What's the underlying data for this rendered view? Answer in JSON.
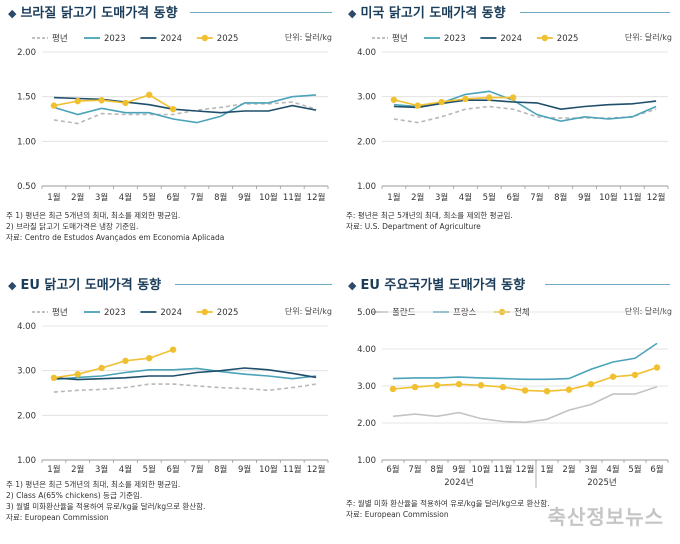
{
  "panels": [
    {
      "id": "brazil",
      "title": "브라질 닭고기 도매가격 동향",
      "unit": "단위: 달러/kg",
      "notes": [
        "주 1) 평년은 최근 5개년의 최대, 최소를 제외한 평균임.",
        "    2) 브라질 닭고기 도매가격은 냉장 기준임.",
        "자료: Centro de Estudos Avançados em Economia Aplicada"
      ]
    },
    {
      "id": "usa",
      "title": "미국 닭고기 도매가격 동향",
      "unit": "단위: 달러/kg",
      "notes": [
        "주: 평년은 최근 5개년의 최대, 최소를 제외한 평균임.",
        "자료: U.S. Department of Agriculture"
      ]
    },
    {
      "id": "eu",
      "title": "EU 닭고기 도매가격 동향",
      "unit": "단위: 달러/kg",
      "notes": [
        "주 1) 평년은 최근 5개년의 최대, 최소를 제외한 평균임.",
        "    2) Class A(65% chickens) 등급 기준임.",
        "    3) 월별 미화환산율을 적용하여 유로/kg을 달러/kg으로 환산함.",
        "자료: European Commission"
      ]
    },
    {
      "id": "eu_country",
      "title": "EU 주요국가별 도매가격 동향",
      "unit": "단위: 달러/kg",
      "notes": [
        "주: 월별 미화 환산율을 적용하여 유로/kg을 달러/kg으로 환산함.",
        "자료: European Commission"
      ]
    }
  ],
  "watermark": "축산정보뉴스",
  "chart_data": [
    {
      "type": "line",
      "title": "브라질 닭고기 도매가격 동향",
      "categories": [
        "1월",
        "2월",
        "3월",
        "4월",
        "5월",
        "6월",
        "7월",
        "8월",
        "9월",
        "10월",
        "11월",
        "12월"
      ],
      "ylim": [
        0.5,
        2.0
      ],
      "yticks": [
        "0.50",
        "1.00",
        "1.50",
        "2.00"
      ],
      "ytick_values": [
        0.5,
        1.0,
        1.5,
        2.0
      ],
      "legend_position": "top-left",
      "series": [
        {
          "name": "평년",
          "color": "#b8b8b8",
          "dashed": true,
          "values": [
            1.24,
            1.2,
            1.31,
            1.3,
            1.3,
            1.3,
            1.35,
            1.38,
            1.42,
            1.42,
            1.44,
            1.36
          ]
        },
        {
          "name": "2023",
          "color": "#4aa3b9",
          "values": [
            1.38,
            1.3,
            1.37,
            1.32,
            1.32,
            1.25,
            1.21,
            1.28,
            1.43,
            1.43,
            1.5,
            1.52
          ]
        },
        {
          "name": "2024",
          "color": "#1f4e6b",
          "values": [
            1.49,
            1.48,
            1.47,
            1.44,
            1.41,
            1.36,
            1.34,
            1.32,
            1.34,
            1.34,
            1.4,
            1.35
          ]
        },
        {
          "name": "2025",
          "color": "#f0c030",
          "marker": true,
          "values": [
            1.4,
            1.45,
            1.46,
            1.43,
            1.52,
            1.36,
            null,
            null,
            null,
            null,
            null,
            null
          ]
        }
      ]
    },
    {
      "type": "line",
      "title": "미국 닭고기 도매가격 동향",
      "categories": [
        "1월",
        "2월",
        "3월",
        "4월",
        "5월",
        "6월",
        "7월",
        "8월",
        "9월",
        "10월",
        "11월",
        "12월"
      ],
      "ylim": [
        1.0,
        4.0
      ],
      "yticks": [
        "1.00",
        "2.00",
        "3.00",
        "4.00"
      ],
      "ytick_values": [
        1.0,
        2.0,
        3.0,
        4.0
      ],
      "legend_position": "top-left",
      "series": [
        {
          "name": "평년",
          "color": "#b8b8b8",
          "dashed": true,
          "values": [
            2.5,
            2.42,
            2.55,
            2.72,
            2.78,
            2.72,
            2.55,
            2.52,
            2.52,
            2.52,
            2.55,
            2.72
          ]
        },
        {
          "name": "2023",
          "color": "#4aa3b9",
          "values": [
            2.82,
            2.78,
            2.86,
            3.05,
            3.12,
            2.92,
            2.6,
            2.45,
            2.55,
            2.5,
            2.55,
            2.78
          ]
        },
        {
          "name": "2024",
          "color": "#1f4e6b",
          "values": [
            2.78,
            2.76,
            2.85,
            2.92,
            2.92,
            2.88,
            2.86,
            2.72,
            2.78,
            2.82,
            2.84,
            2.9
          ]
        },
        {
          "name": "2025",
          "color": "#f0c030",
          "marker": true,
          "values": [
            2.93,
            2.8,
            2.88,
            2.95,
            2.98,
            2.98,
            null,
            null,
            null,
            null,
            null,
            null
          ]
        }
      ]
    },
    {
      "type": "line",
      "title": "EU 닭고기 도매가격 동향",
      "categories": [
        "1월",
        "2월",
        "3월",
        "4월",
        "5월",
        "6월",
        "7월",
        "8월",
        "9월",
        "10월",
        "11월",
        "12월"
      ],
      "ylim": [
        1.0,
        4.0
      ],
      "yticks": [
        "1.00",
        "2.00",
        "3.00",
        "4.00"
      ],
      "ytick_values": [
        1.0,
        2.0,
        3.0,
        4.0
      ],
      "legend_position": "top-left",
      "series": [
        {
          "name": "평년",
          "color": "#b8b8b8",
          "dashed": true,
          "values": [
            2.52,
            2.56,
            2.58,
            2.62,
            2.7,
            2.7,
            2.66,
            2.62,
            2.6,
            2.56,
            2.62,
            2.7
          ]
        },
        {
          "name": "2023",
          "color": "#4aa3b9",
          "values": [
            2.8,
            2.85,
            2.88,
            2.96,
            3.02,
            3.02,
            3.05,
            2.98,
            2.92,
            2.88,
            2.82,
            2.88
          ]
        },
        {
          "name": "2024",
          "color": "#1f4e6b",
          "values": [
            2.84,
            2.8,
            2.82,
            2.84,
            2.88,
            2.88,
            2.96,
            3.0,
            3.06,
            3.02,
            2.94,
            2.85
          ]
        },
        {
          "name": "2025",
          "color": "#f0c030",
          "marker": true,
          "values": [
            2.84,
            2.92,
            3.06,
            3.22,
            3.28,
            3.47,
            null,
            null,
            null,
            null,
            null,
            null
          ]
        }
      ]
    },
    {
      "type": "line",
      "title": "EU 주요국가별 도매가격 동향",
      "categories": [
        "6월",
        "7월",
        "8월",
        "9월",
        "10월",
        "11월",
        "12월",
        "1월",
        "2월",
        "3월",
        "4월",
        "5월",
        "6월"
      ],
      "year_groups": [
        {
          "label": "2024년",
          "from": 0,
          "to": 6
        },
        {
          "label": "2025년",
          "from": 7,
          "to": 12
        }
      ],
      "ylim": [
        1.0,
        5.0
      ],
      "yticks": [
        "1.00",
        "2.00",
        "3.00",
        "4.00",
        "5.00"
      ],
      "ytick_values": [
        1.0,
        2.0,
        3.0,
        4.0,
        5.0
      ],
      "legend_position": "top-left",
      "series": [
        {
          "name": "폴란드",
          "color": "#c4c4c4",
          "values": [
            2.18,
            2.24,
            2.18,
            2.28,
            2.12,
            2.04,
            2.02,
            2.1,
            2.35,
            2.5,
            2.78,
            2.78,
            2.98
          ]
        },
        {
          "name": "프랑스",
          "color": "#4aa3b9",
          "values": [
            3.2,
            3.22,
            3.22,
            3.24,
            3.22,
            3.2,
            3.18,
            3.18,
            3.2,
            3.45,
            3.65,
            3.75,
            4.15
          ]
        },
        {
          "name": "전체",
          "color": "#f0c030",
          "marker": true,
          "values": [
            2.92,
            2.97,
            3.02,
            3.05,
            3.02,
            2.97,
            2.88,
            2.86,
            2.9,
            3.05,
            3.25,
            3.3,
            3.5
          ]
        }
      ]
    }
  ]
}
